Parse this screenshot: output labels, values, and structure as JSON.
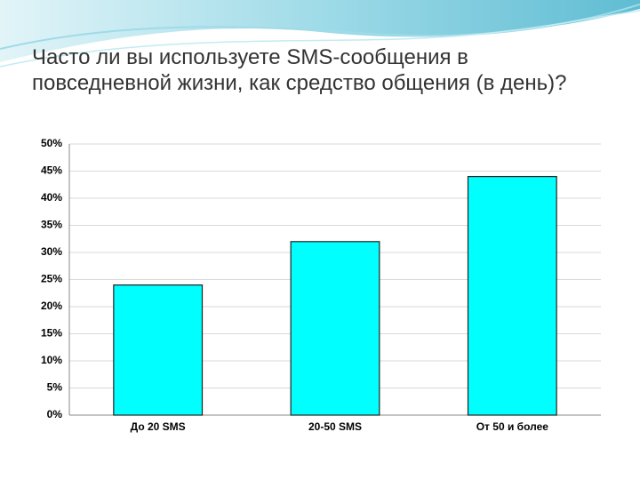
{
  "chart_data": {
    "type": "bar",
    "title": "Часто ли вы используете SMS-сообщения в повседневной жизни, как средство общения (в день)?",
    "categories": [
      "До 20 SMS",
      "20-50 SMS",
      "От 50 и более"
    ],
    "values": [
      24,
      32,
      44
    ],
    "color": "#00ffff",
    "ylim": [
      0,
      50
    ],
    "yticks": [
      {
        "value": 0,
        "label": "0%"
      },
      {
        "value": 5,
        "label": "5%"
      },
      {
        "value": 10,
        "label": "10%"
      },
      {
        "value": 15,
        "label": "15%"
      },
      {
        "value": 20,
        "label": "20%"
      },
      {
        "value": 25,
        "label": "25%"
      },
      {
        "value": 30,
        "label": "30%"
      },
      {
        "value": 35,
        "label": "35%"
      },
      {
        "value": 40,
        "label": "40%"
      },
      {
        "value": 45,
        "label": "45%"
      },
      {
        "value": 50,
        "label": "50%"
      }
    ],
    "grid": true
  }
}
